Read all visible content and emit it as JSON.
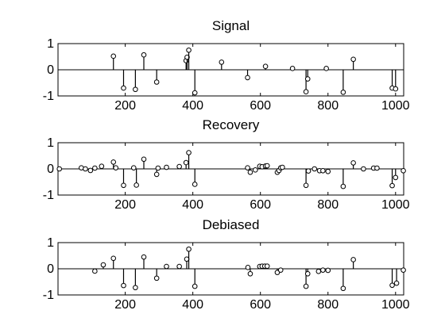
{
  "chart_data": [
    {
      "type": "stem",
      "title": "Signal",
      "xlim": [
        1,
        1024
      ],
      "ylim": [
        -1,
        1
      ],
      "xticks": [
        200,
        400,
        600,
        800,
        1000
      ],
      "yticks": [
        -1,
        0,
        1
      ],
      "points": [
        [
          165,
          0.52
        ],
        [
          195,
          -0.7
        ],
        [
          230,
          -0.75
        ],
        [
          255,
          0.57
        ],
        [
          293,
          -0.47
        ],
        [
          380,
          0.35
        ],
        [
          383,
          0.48
        ],
        [
          388,
          0.75
        ],
        [
          406,
          -0.88
        ],
        [
          485,
          0.29
        ],
        [
          562,
          -0.3
        ],
        [
          615,
          0.13
        ],
        [
          695,
          0.05
        ],
        [
          735,
          -0.84
        ],
        [
          740,
          -0.35
        ],
        [
          795,
          0.05
        ],
        [
          845,
          -0.86
        ],
        [
          875,
          0.4
        ],
        [
          990,
          -0.7
        ],
        [
          1000,
          -0.73
        ]
      ]
    },
    {
      "type": "stem",
      "title": "Recovery",
      "xlim": [
        1,
        1024
      ],
      "ylim": [
        -1,
        1
      ],
      "xticks": [
        200,
        400,
        600,
        800,
        1000
      ],
      "yticks": [
        -1,
        0,
        1
      ],
      "points": [
        [
          5,
          0.0
        ],
        [
          70,
          0.04
        ],
        [
          82,
          0.0
        ],
        [
          97,
          -0.06
        ],
        [
          110,
          0.03
        ],
        [
          130,
          0.1
        ],
        [
          165,
          0.26
        ],
        [
          172,
          0.04
        ],
        [
          195,
          -0.63
        ],
        [
          225,
          0.04
        ],
        [
          233,
          -0.62
        ],
        [
          255,
          0.37
        ],
        [
          293,
          -0.21
        ],
        [
          297,
          0.03
        ],
        [
          322,
          0.06
        ],
        [
          360,
          0.09
        ],
        [
          380,
          0.24
        ],
        [
          388,
          0.62
        ],
        [
          406,
          -0.59
        ],
        [
          562,
          0.04
        ],
        [
          570,
          -0.13
        ],
        [
          585,
          -0.04
        ],
        [
          598,
          0.1
        ],
        [
          605,
          0.08
        ],
        [
          615,
          0.11
        ],
        [
          620,
          0.12
        ],
        [
          650,
          -0.13
        ],
        [
          655,
          -0.06
        ],
        [
          660,
          0.04
        ],
        [
          665,
          0.06
        ],
        [
          735,
          -0.63
        ],
        [
          742,
          -0.08
        ],
        [
          760,
          0.0
        ],
        [
          775,
          -0.07
        ],
        [
          785,
          -0.07
        ],
        [
          800,
          -0.1
        ],
        [
          845,
          -0.67
        ],
        [
          875,
          0.23
        ],
        [
          905,
          0.0
        ],
        [
          935,
          0.03
        ],
        [
          945,
          0.03
        ],
        [
          990,
          -0.64
        ],
        [
          1000,
          -0.33
        ],
        [
          1023,
          -0.07
        ]
      ]
    },
    {
      "type": "stem",
      "title": "Debiased",
      "xlim": [
        1,
        1024
      ],
      "ylim": [
        -1,
        1
      ],
      "xticks": [
        200,
        400,
        600,
        800,
        1000
      ],
      "yticks": [
        -1,
        0,
        1
      ],
      "points": [
        [
          110,
          -0.09
        ],
        [
          135,
          0.15
        ],
        [
          165,
          0.4
        ],
        [
          195,
          -0.64
        ],
        [
          230,
          -0.72
        ],
        [
          255,
          0.45
        ],
        [
          293,
          -0.36
        ],
        [
          322,
          0.09
        ],
        [
          360,
          0.09
        ],
        [
          382,
          0.37
        ],
        [
          388,
          0.75
        ],
        [
          406,
          -0.67
        ],
        [
          563,
          0.05
        ],
        [
          570,
          -0.19
        ],
        [
          598,
          0.09
        ],
        [
          605,
          0.1
        ],
        [
          613,
          0.1
        ],
        [
          620,
          0.1
        ],
        [
          650,
          -0.14
        ],
        [
          660,
          -0.05
        ],
        [
          735,
          -0.67
        ],
        [
          740,
          -0.19
        ],
        [
          772,
          -0.1
        ],
        [
          785,
          -0.05
        ],
        [
          800,
          -0.06
        ],
        [
          845,
          -0.75
        ],
        [
          875,
          0.35
        ],
        [
          990,
          -0.63
        ],
        [
          1003,
          -0.55
        ],
        [
          1023,
          -0.05
        ]
      ]
    }
  ]
}
